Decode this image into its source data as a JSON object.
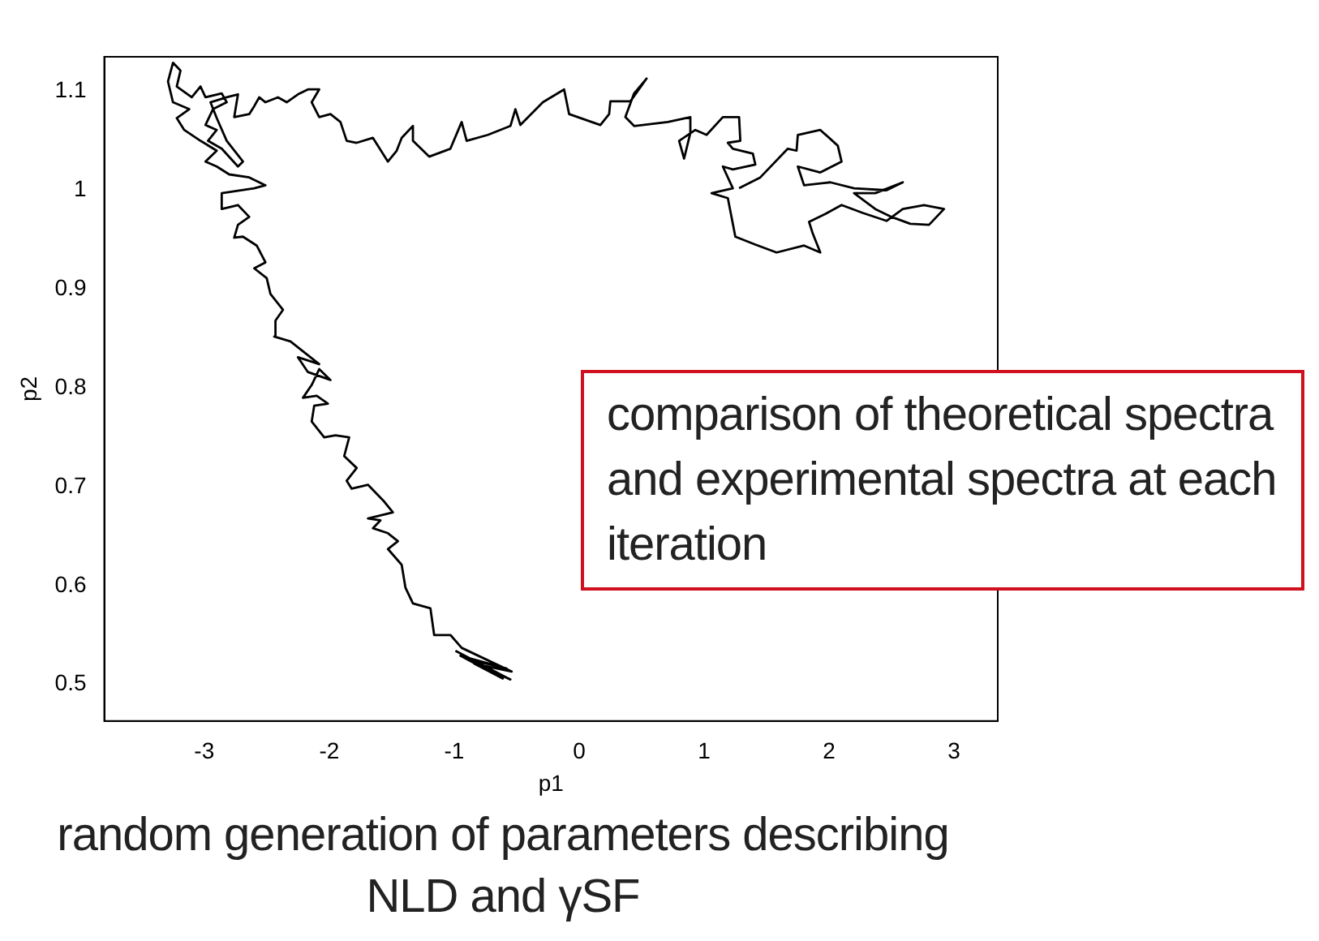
{
  "chart_data": {
    "type": "line",
    "xlabel": "p1",
    "ylabel": "p2",
    "xlim": [
      -3.8,
      3.35
    ],
    "ylim": [
      0.463,
      1.135
    ],
    "xticks": [
      -3,
      -2,
      -1,
      0,
      1,
      2,
      3
    ],
    "yticks": [
      0.5,
      0.6,
      0.7,
      0.8,
      0.9,
      1,
      1.1
    ],
    "grid": false,
    "legend": false,
    "annotations": [
      "comparison of theoretical spectra and experimental spectra at each iteration",
      "random generation of parameters describing NLD and γSF"
    ],
    "series": [
      {
        "color": "#000000",
        "x": [
          -0.99,
          -0.55,
          -0.9,
          -0.58,
          -0.95,
          -0.61,
          -0.84,
          -0.54,
          -0.94,
          -1.03,
          -1.16,
          -1.19,
          -1.33,
          -1.39,
          -1.42,
          -1.53,
          -1.45,
          -1.53,
          -1.65,
          -1.59,
          -1.69,
          -1.49,
          -1.56,
          -1.69,
          -1.82,
          -1.86,
          -1.78,
          -1.88,
          -1.84,
          -1.95,
          -2.04,
          -2.14,
          -2.12,
          -2.01,
          -2.1,
          -2.21,
          -2.14,
          -2.08,
          -1.99,
          -2.17,
          -2.25,
          -2.08,
          -2.31,
          -2.44,
          -2.43,
          -2.37,
          -2.47,
          -2.5,
          -2.6,
          -2.51,
          -2.58,
          -2.69,
          -2.76,
          -2.73,
          -2.64,
          -2.73,
          -2.86,
          -2.86,
          -2.6,
          -2.51,
          -2.64,
          -2.8,
          -2.9,
          -2.99,
          -2.9,
          -3.03,
          -3.16,
          -3.22,
          -3.12,
          -3.25,
          -3.29,
          -3.25,
          -3.19,
          -3.22,
          -3.1,
          -3.03,
          -2.99,
          -2.86,
          -2.82,
          -2.93,
          -2.99,
          -2.9,
          -2.97,
          -2.86,
          -2.73,
          -2.69,
          -2.82,
          -2.9,
          -2.95,
          -2.82,
          -2.73,
          -2.76,
          -2.64,
          -2.6,
          -2.56,
          -2.51,
          -2.41,
          -2.34,
          -2.25,
          -2.17,
          -2.08,
          -2.14,
          -2.08,
          -1.99,
          -1.91,
          -1.86,
          -1.78,
          -1.65,
          -1.53,
          -1.46,
          -1.42,
          -1.33,
          -1.33,
          -1.2,
          -1.03,
          -0.94,
          -0.9,
          -0.73,
          -0.55,
          -0.51,
          -0.47,
          -0.29,
          -0.12,
          -0.08,
          0.17,
          0.24,
          0.25,
          0.41,
          0.54,
          0.44,
          0.37,
          0.44,
          0.71,
          0.89,
          0.89,
          0.84,
          0.8,
          0.93,
          1.02,
          1.15,
          1.28,
          1.29,
          1.19,
          1.23,
          1.39,
          1.41,
          1.23,
          1.15,
          1.23,
          1.06,
          1.19,
          1.25,
          1.41,
          1.58,
          1.8,
          1.93,
          1.87,
          1.84,
          1.97,
          2.1,
          2.27,
          2.46,
          2.59,
          2.76,
          2.92,
          2.8,
          2.65,
          2.5,
          2.37,
          2.2,
          2.37,
          2.59,
          2.46,
          2.2,
          2.01,
          1.8,
          1.75,
          1.93,
          2.1,
          2.07,
          1.93,
          1.75,
          1.74,
          1.67,
          1.45,
          1.28
        ],
        "values": [
          0.534,
          0.505,
          0.526,
          0.516,
          0.529,
          0.506,
          0.521,
          0.513,
          0.537,
          0.55,
          0.55,
          0.577,
          0.582,
          0.598,
          0.621,
          0.637,
          0.645,
          0.653,
          0.658,
          0.666,
          0.668,
          0.674,
          0.685,
          0.702,
          0.698,
          0.706,
          0.719,
          0.731,
          0.75,
          0.752,
          0.75,
          0.766,
          0.782,
          0.784,
          0.792,
          0.79,
          0.803,
          0.819,
          0.808,
          0.816,
          0.831,
          0.824,
          0.847,
          0.852,
          0.868,
          0.879,
          0.895,
          0.911,
          0.921,
          0.927,
          0.944,
          0.953,
          0.952,
          0.965,
          0.973,
          0.985,
          0.981,
          0.997,
          1.002,
          1.005,
          1.013,
          1.016,
          1.024,
          1.029,
          1.04,
          1.05,
          1.061,
          1.073,
          1.082,
          1.089,
          1.11,
          1.129,
          1.121,
          1.105,
          1.094,
          1.105,
          1.094,
          1.098,
          1.089,
          1.082,
          1.066,
          1.061,
          1.05,
          1.042,
          1.024,
          1.029,
          1.05,
          1.073,
          1.089,
          1.094,
          1.097,
          1.074,
          1.077,
          1.085,
          1.094,
          1.089,
          1.094,
          1.089,
          1.097,
          1.102,
          1.102,
          1.089,
          1.074,
          1.077,
          1.069,
          1.05,
          1.048,
          1.053,
          1.029,
          1.04,
          1.053,
          1.065,
          1.05,
          1.034,
          1.042,
          1.069,
          1.05,
          1.056,
          1.065,
          1.082,
          1.066,
          1.089,
          1.102,
          1.077,
          1.066,
          1.077,
          1.09,
          1.09,
          1.113,
          1.098,
          1.074,
          1.065,
          1.069,
          1.074,
          1.058,
          1.032,
          1.05,
          1.061,
          1.056,
          1.074,
          1.074,
          1.05,
          1.048,
          1.042,
          1.037,
          1.026,
          1.021,
          1.024,
          1.002,
          0.997,
          0.992,
          0.953,
          0.945,
          0.937,
          0.944,
          0.937,
          0.956,
          0.968,
          0.976,
          0.985,
          0.977,
          0.969,
          0.981,
          0.985,
          0.981,
          0.965,
          0.966,
          0.973,
          0.981,
          0.997,
          0.997,
          1.008,
          1.0,
          1.002,
          1.008,
          1.005,
          1.024,
          1.018,
          1.029,
          1.045,
          1.061,
          1.056,
          1.04,
          1.042,
          1.013,
          1.002
        ]
      }
    ]
  }
}
